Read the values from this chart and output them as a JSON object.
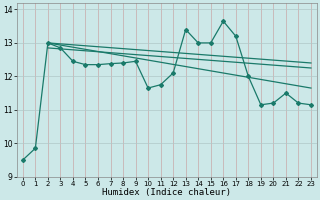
{
  "xlabel": "Humidex (Indice chaleur)",
  "background_color": "#cce8e8",
  "grid_color_major": "#b0c8c8",
  "line_color": "#1a7a6a",
  "xlim": [
    -0.5,
    23.5
  ],
  "ylim": [
    9.0,
    14.2
  ],
  "yticks": [
    9,
    10,
    11,
    12,
    13,
    14
  ],
  "xticks": [
    0,
    1,
    2,
    3,
    4,
    5,
    6,
    7,
    8,
    9,
    10,
    11,
    12,
    13,
    14,
    15,
    16,
    17,
    18,
    19,
    20,
    21,
    22,
    23
  ],
  "series1": {
    "x": [
      0,
      1,
      2,
      3,
      4,
      5,
      6,
      7,
      8,
      9,
      10,
      11,
      12,
      13,
      14,
      15,
      16,
      17,
      18,
      19,
      20,
      21,
      22,
      23
    ],
    "y": [
      9.5,
      9.85,
      13.0,
      12.85,
      12.45,
      12.35,
      12.35,
      12.38,
      12.4,
      12.45,
      11.65,
      11.75,
      12.1,
      13.4,
      13.0,
      13.0,
      13.65,
      13.2,
      12.0,
      11.15,
      11.2,
      11.5,
      11.2,
      11.15
    ]
  },
  "series2": {
    "x": [
      2,
      23
    ],
    "y": [
      13.0,
      12.4
    ]
  },
  "series3": {
    "x": [
      2,
      23
    ],
    "y": [
      13.0,
      11.65
    ]
  },
  "series4": {
    "x": [
      2,
      23
    ],
    "y": [
      12.85,
      12.25
    ]
  }
}
